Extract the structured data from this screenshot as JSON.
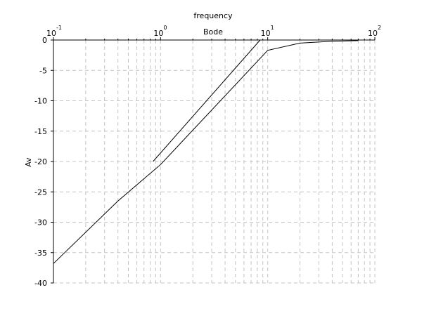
{
  "chart_data": {
    "type": "line",
    "title": "Bode",
    "xlabel": "frequency",
    "ylabel": "Av",
    "x_scale": "log",
    "xlim": [
      0.1,
      100
    ],
    "ylim": [
      -40,
      0
    ],
    "grid": true,
    "x_axis_position": "top",
    "x_ticks": [
      {
        "value": 0.1,
        "base": "10",
        "exp": "-1"
      },
      {
        "value": 1,
        "base": "10",
        "exp": "0"
      },
      {
        "value": 10,
        "base": "10",
        "exp": "1"
      },
      {
        "value": 100,
        "base": "10",
        "exp": "2"
      }
    ],
    "y_ticks": [
      0,
      -5,
      -10,
      -15,
      -20,
      -25,
      -30,
      -35,
      -40
    ],
    "y_tick_labels": [
      "0",
      "-5",
      "-10",
      "-15",
      "-20",
      "-25",
      "-30",
      "-35",
      "-40"
    ],
    "series": [
      {
        "color": "#000000",
        "x": [
          0.1,
          0.4,
          1,
          10,
          20,
          40,
          70
        ],
        "y": [
          -36.8,
          -26.5,
          -20.5,
          -1.7,
          -0.5,
          -0.2,
          -0.1
        ]
      },
      {
        "color": "#000000",
        "x": [
          0.85,
          8.5
        ],
        "y": [
          -20,
          0
        ]
      }
    ]
  }
}
